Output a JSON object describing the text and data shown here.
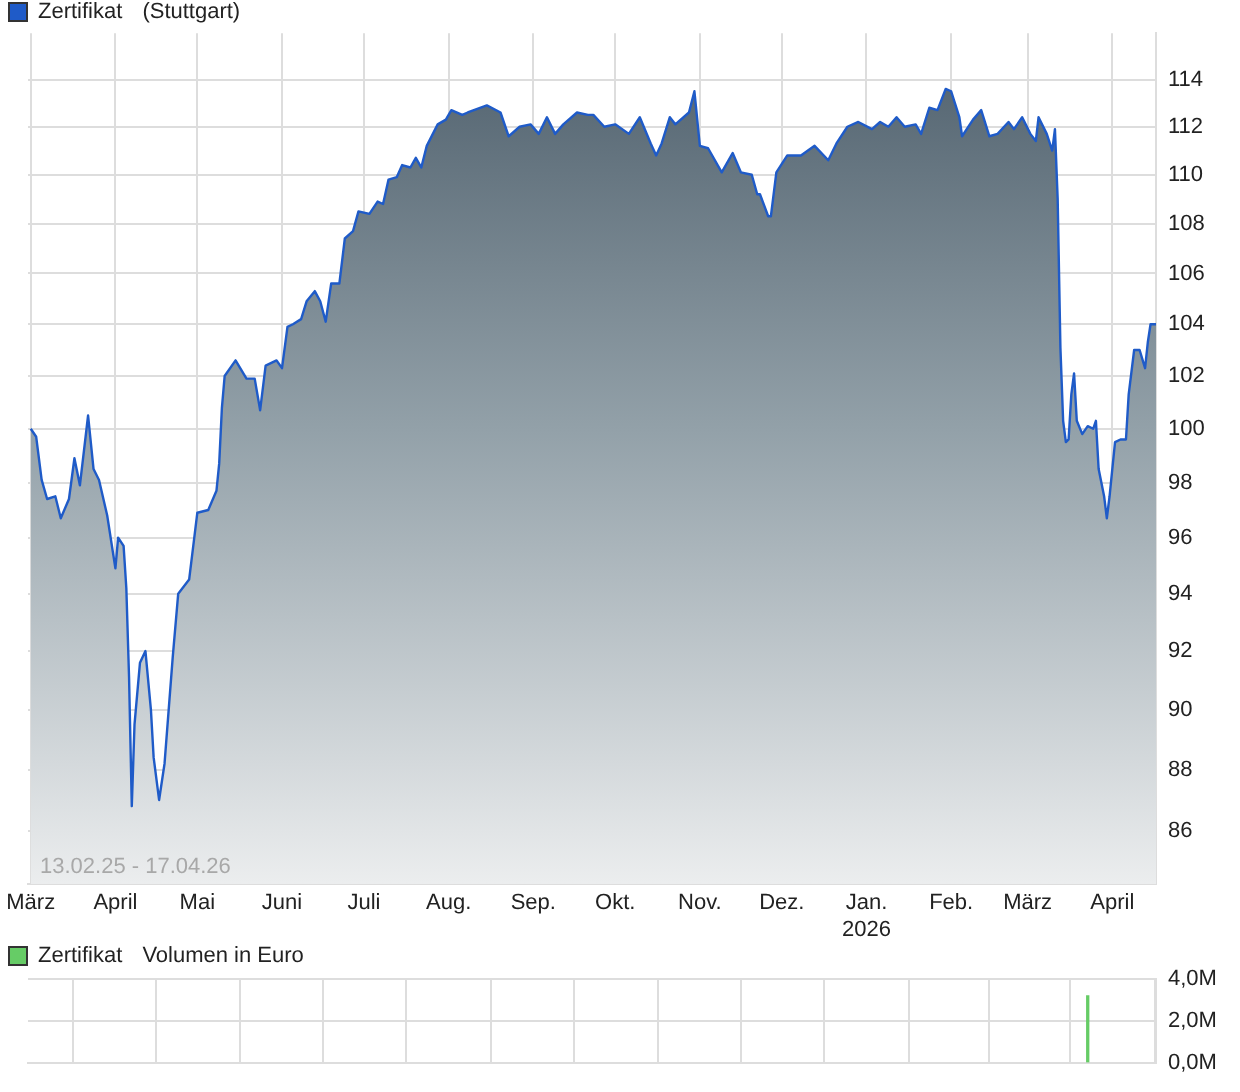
{
  "chart_data": [
    {
      "type": "area",
      "subtitle": "(Stuttgart)",
      "legend": "top left",
      "log": true,
      "grid": true,
      "annotations": [
        "13.02.25 - 17.04.26"
      ],
      "xlim": [
        "2025-02-28",
        "2026-04-17"
      ],
      "xticks": [
        {
          "value": "2025-03-01",
          "label": "März"
        },
        {
          "value": "2025-04-01",
          "label": "April"
        },
        {
          "value": "2025-05-01",
          "label": "Mai"
        },
        {
          "value": "2025-06-01",
          "label": "Juni"
        },
        {
          "value": "2025-07-01",
          "label": "Juli"
        },
        {
          "value": "2025-08-01",
          "label": "Aug."
        },
        {
          "value": "2025-09-01",
          "label": "Sep."
        },
        {
          "value": "2025-10-01",
          "label": "Okt."
        },
        {
          "value": "2025-11-01",
          "label": "Nov."
        },
        {
          "value": "2025-12-01",
          "label": "Dez."
        },
        {
          "value": "2026-01-01",
          "label": "Jan.\n2026"
        },
        {
          "value": "2026-02-01",
          "label": "Feb."
        },
        {
          "value": "2026-03-01",
          "label": "März"
        },
        {
          "value": "2026-04-01",
          "label": "April"
        }
      ],
      "ylim": [
        84.3,
        116
      ],
      "yticks": [
        86,
        88,
        90,
        92,
        94,
        96,
        98,
        100,
        102,
        104,
        106,
        108,
        110,
        112,
        114
      ],
      "x": [
        "2025-03-01",
        "2025-03-03",
        "2025-03-05",
        "2025-03-07",
        "2025-03-10",
        "2025-03-12",
        "2025-03-15",
        "2025-03-17",
        "2025-03-19",
        "2025-03-22",
        "2025-03-24",
        "2025-03-26",
        "2025-03-29",
        "2025-04-01",
        "2025-04-02",
        "2025-04-04",
        "2025-04-05",
        "2025-04-06",
        "2025-04-07",
        "2025-04-08",
        "2025-04-10",
        "2025-04-12",
        "2025-04-14",
        "2025-04-15",
        "2025-04-17",
        "2025-04-19",
        "2025-04-22",
        "2025-04-24",
        "2025-04-28",
        "2025-05-01",
        "2025-05-05",
        "2025-05-08",
        "2025-05-09",
        "2025-05-10",
        "2025-05-11",
        "2025-05-15",
        "2025-05-19",
        "2025-05-22",
        "2025-05-24",
        "2025-05-26",
        "2025-05-30",
        "2025-06-01",
        "2025-06-03",
        "2025-06-05",
        "2025-06-08",
        "2025-06-10",
        "2025-06-13",
        "2025-06-15",
        "2025-06-17",
        "2025-06-19",
        "2025-06-22",
        "2025-06-24",
        "2025-06-27",
        "2025-06-29",
        "2025-07-03",
        "2025-07-06",
        "2025-07-08",
        "2025-07-10",
        "2025-07-13",
        "2025-07-15",
        "2025-07-18",
        "2025-07-20",
        "2025-07-22",
        "2025-07-24",
        "2025-07-28",
        "2025-07-31",
        "2025-08-02",
        "2025-08-06",
        "2025-08-08",
        "2025-08-15",
        "2025-08-20",
        "2025-08-23",
        "2025-08-27",
        "2025-08-31",
        "2025-09-03",
        "2025-09-06",
        "2025-09-09",
        "2025-09-12",
        "2025-09-17",
        "2025-09-21",
        "2025-09-23",
        "2025-09-27",
        "2025-10-01",
        "2025-10-06",
        "2025-10-10",
        "2025-10-14",
        "2025-10-16",
        "2025-10-18",
        "2025-10-21",
        "2025-10-23",
        "2025-10-28",
        "2025-10-30",
        "2025-11-01",
        "2025-11-04",
        "2025-11-09",
        "2025-11-13",
        "2025-11-16",
        "2025-11-20",
        "2025-11-22",
        "2025-11-23",
        "2025-11-26",
        "2025-11-27",
        "2025-11-29",
        "2025-12-03",
        "2025-12-08",
        "2025-12-13",
        "2025-12-18",
        "2025-12-21",
        "2025-12-25",
        "2025-12-29",
        "2026-01-03",
        "2026-01-06",
        "2026-01-09",
        "2026-01-12",
        "2026-01-15",
        "2026-01-19",
        "2026-01-21",
        "2026-01-24",
        "2026-01-27",
        "2026-01-30",
        "2026-02-01",
        "2026-02-04",
        "2026-02-05",
        "2026-02-09",
        "2026-02-12",
        "2026-02-15",
        "2026-02-18",
        "2026-02-22",
        "2026-02-24",
        "2026-02-27",
        "2026-03-02",
        "2026-03-04",
        "2026-03-05",
        "2026-03-08",
        "2026-03-10",
        "2026-03-11",
        "2026-03-12",
        "2026-03-13",
        "2026-03-14",
        "2026-03-15",
        "2026-03-16",
        "2026-03-17",
        "2026-03-18",
        "2026-03-19",
        "2026-03-21",
        "2026-03-23",
        "2026-03-25",
        "2026-03-26",
        "2026-03-27",
        "2026-03-29",
        "2026-03-30",
        "2026-03-31",
        "2026-04-01",
        "2026-04-02",
        "2026-04-04",
        "2026-04-06",
        "2026-04-07",
        "2026-04-09",
        "2026-04-11",
        "2026-04-13",
        "2026-04-14",
        "2026-04-15",
        "2026-04-17"
      ],
      "series": [
        {
          "name": "Zertifikat",
          "color": "#1f5bc8",
          "values": [
            100.0,
            99.7,
            98.1,
            97.4,
            97.5,
            96.7,
            97.4,
            98.9,
            97.9,
            100.5,
            98.5,
            98.1,
            96.8,
            94.9,
            96.0,
            95.7,
            94.2,
            91.1,
            86.8,
            89.5,
            91.6,
            92.0,
            90.0,
            88.4,
            87.0,
            88.2,
            91.8,
            94.0,
            94.5,
            96.9,
            97.0,
            97.7,
            98.7,
            100.8,
            102.0,
            102.6,
            101.9,
            101.9,
            100.7,
            102.4,
            102.6,
            102.3,
            103.9,
            104.0,
            104.2,
            104.9,
            105.3,
            104.9,
            104.1,
            105.6,
            105.6,
            107.4,
            107.7,
            108.5,
            108.4,
            108.9,
            108.8,
            109.8,
            109.9,
            110.4,
            110.3,
            110.7,
            110.3,
            111.2,
            112.1,
            112.3,
            112.7,
            112.5,
            112.6,
            112.9,
            112.6,
            111.6,
            112.0,
            112.1,
            111.7,
            112.4,
            111.7,
            112.1,
            112.6,
            112.5,
            112.5,
            112.0,
            112.1,
            111.7,
            112.4,
            111.3,
            110.8,
            111.3,
            112.4,
            112.1,
            112.6,
            113.5,
            111.2,
            111.1,
            110.1,
            110.9,
            110.1,
            110.0,
            109.2,
            109.2,
            108.3,
            108.3,
            110.1,
            110.8,
            110.8,
            111.2,
            110.6,
            111.3,
            112.0,
            112.2,
            111.9,
            112.2,
            112.0,
            112.4,
            112.0,
            112.1,
            111.7,
            112.8,
            112.7,
            113.6,
            113.5,
            112.4,
            111.6,
            112.3,
            112.7,
            111.6,
            111.7,
            112.2,
            111.9,
            112.4,
            111.7,
            111.4,
            112.4,
            111.7,
            111.0,
            111.9,
            109.0,
            103.1,
            100.3,
            99.5,
            99.6,
            101.3,
            102.1,
            100.3,
            99.8,
            100.1,
            100.0,
            100.3,
            98.5,
            97.5,
            96.7,
            97.5,
            98.5,
            99.5,
            99.6,
            99.6,
            101.3,
            103.0,
            103.0,
            102.3,
            103.3,
            104.0,
            104.0
          ]
        }
      ]
    },
    {
      "type": "bar",
      "subtitle": "Volumen in Euro",
      "legend": "top left",
      "grid": true,
      "tick_labels": "y",
      "xlim": [
        "2025-02-28",
        "2026-04-17"
      ],
      "xticks": [
        {
          "value": "2025-03-01",
          "label": null
        },
        {
          "value": "2025-04-01",
          "label": null
        },
        {
          "value": "2025-05-01",
          "label": null
        },
        {
          "value": "2025-06-01",
          "label": null
        },
        {
          "value": "2025-07-01",
          "label": null
        },
        {
          "value": "2025-08-01",
          "label": null
        },
        {
          "value": "2025-09-01",
          "label": null
        },
        {
          "value": "2025-10-01",
          "label": null
        },
        {
          "value": "2025-11-01",
          "label": null
        },
        {
          "value": "2025-12-01",
          "label": null
        },
        {
          "value": "2026-01-01",
          "label": null
        },
        {
          "value": "2026-02-01",
          "label": null
        },
        {
          "value": "2026-03-01",
          "label": null
        },
        {
          "value": "2026-04-01",
          "label": null
        }
      ],
      "ylim": [
        0,
        4
      ],
      "yticks": [
        {
          "value": 0,
          "label": "0,0M"
        },
        {
          "value": 2,
          "label": "2,0M"
        },
        {
          "value": 4,
          "label": "4,0M"
        }
      ],
      "x": [
        "2026-03-23"
      ],
      "series": [
        {
          "name": "Zertifikat",
          "color": "#66cc66",
          "values": [
            3.2
          ]
        }
      ]
    }
  ]
}
